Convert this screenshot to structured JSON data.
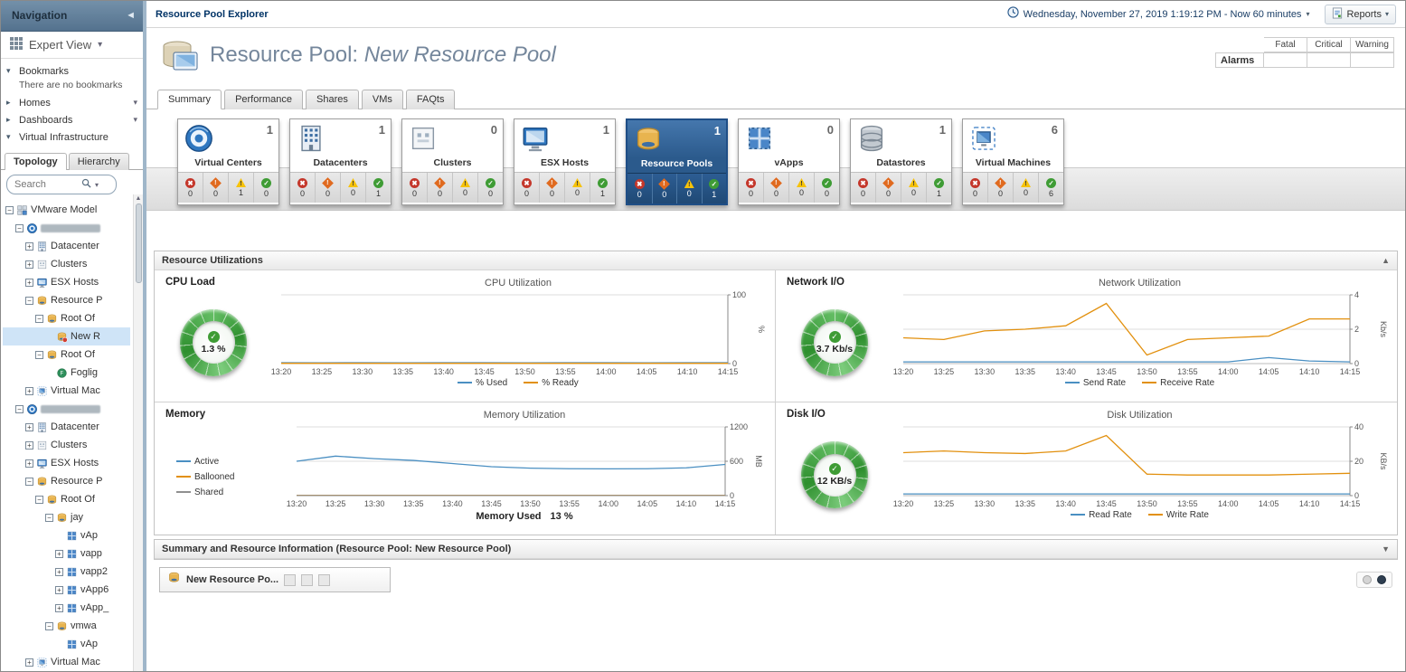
{
  "nav": {
    "title": "Navigation",
    "expert_view": "Expert View",
    "bookmarks_label": "Bookmarks",
    "bookmarks_empty": "There are no bookmarks",
    "homes_label": "Homes",
    "dashboards_label": "Dashboards",
    "virtual_infrastructure_label": "Virtual Infrastructure",
    "tabs": [
      {
        "label": "Topology",
        "active": true
      },
      {
        "label": "Hierarchy",
        "active": false
      }
    ],
    "search_placeholder": "Search",
    "tree": [
      {
        "label": "VMware Model",
        "depth": 0,
        "expander": "minus",
        "icon": "model"
      },
      {
        "label": "",
        "redacted": true,
        "depth": 1,
        "expander": "minus",
        "icon": "vcenter"
      },
      {
        "label": "Datacenter",
        "depth": 2,
        "expander": "plus",
        "icon": "datacenter"
      },
      {
        "label": "Clusters",
        "depth": 2,
        "expander": "plus",
        "icon": "cluster"
      },
      {
        "label": "ESX Hosts",
        "depth": 2,
        "expander": "plus",
        "icon": "esx-host"
      },
      {
        "label": "Resource P",
        "depth": 2,
        "expander": "minus",
        "icon": "resource-pool"
      },
      {
        "label": "Root Of",
        "depth": 3,
        "expander": "minus",
        "icon": "resource-pool"
      },
      {
        "label": "New R",
        "depth": 4,
        "expander": "none",
        "icon": "resource-pool-alarm",
        "selected": true
      },
      {
        "label": "Root Of",
        "depth": 3,
        "expander": "minus",
        "icon": "resource-pool"
      },
      {
        "label": "Foglig",
        "depth": 4,
        "expander": "none",
        "icon": "foglight"
      },
      {
        "label": "Virtual Mac",
        "depth": 2,
        "expander": "plus",
        "icon": "virtual-machine"
      },
      {
        "label": "",
        "redacted": true,
        "depth": 1,
        "expander": "minus",
        "icon": "vcenter"
      },
      {
        "label": "Datacenter",
        "depth": 2,
        "expander": "plus",
        "icon": "datacenter"
      },
      {
        "label": "Clusters",
        "depth": 2,
        "expander": "plus",
        "icon": "cluster"
      },
      {
        "label": "ESX Hosts",
        "depth": 2,
        "expander": "plus",
        "icon": "esx-host"
      },
      {
        "label": "Resource P",
        "depth": 2,
        "expander": "minus",
        "icon": "resource-pool"
      },
      {
        "label": "Root Of",
        "depth": 3,
        "expander": "minus",
        "icon": "resource-pool"
      },
      {
        "label": "jay",
        "depth": 4,
        "expander": "minus",
        "icon": "resource-pool"
      },
      {
        "label": "vAp",
        "depth": 5,
        "expander": "none",
        "icon": "vapp"
      },
      {
        "label": "vapp",
        "depth": 5,
        "expander": "plus",
        "icon": "vapp"
      },
      {
        "label": "vapp2",
        "depth": 5,
        "expander": "plus",
        "icon": "vapp"
      },
      {
        "label": "vApp6",
        "depth": 5,
        "expander": "plus",
        "icon": "vapp"
      },
      {
        "label": "vApp_",
        "depth": 5,
        "expander": "plus",
        "icon": "vapp"
      },
      {
        "label": "vmwa",
        "depth": 4,
        "expander": "minus",
        "icon": "resource-pool"
      },
      {
        "label": "vAp",
        "depth": 5,
        "expander": "none",
        "icon": "vapp"
      },
      {
        "label": "Virtual Mac",
        "depth": 2,
        "expander": "plus",
        "icon": "virtual-machine"
      }
    ]
  },
  "topbar": {
    "breadcrumb": "Resource Pool Explorer",
    "time_range": "Wednesday, November 27, 2019 1:19:12 PM - Now 60 minutes",
    "reports_label": "Reports"
  },
  "header": {
    "title_prefix": "Resource Pool:",
    "title_name": "New Resource Pool",
    "alarms_label": "Alarms",
    "alarm_columns": [
      "Fatal",
      "Critical",
      "Warning"
    ]
  },
  "tabs": [
    {
      "label": "Summary",
      "active": true
    },
    {
      "label": "Performance",
      "active": false
    },
    {
      "label": "Shares",
      "active": false
    },
    {
      "label": "VMs",
      "active": false
    },
    {
      "label": "FAQts",
      "active": false
    }
  ],
  "tiles": [
    {
      "label": "Virtual Centers",
      "count": "1",
      "icon": "virtual-center",
      "alarms": {
        "fatal": 0,
        "critical": 0,
        "warning": 1,
        "normal": 0
      }
    },
    {
      "label": "Datacenters",
      "count": "1",
      "icon": "datacenter",
      "alarms": {
        "fatal": 0,
        "critical": 0,
        "warning": 0,
        "normal": 1
      }
    },
    {
      "label": "Clusters",
      "count": "0",
      "icon": "cluster",
      "alarms": {
        "fatal": 0,
        "critical": 0,
        "warning": 0,
        "normal": 0
      }
    },
    {
      "label": "ESX Hosts",
      "count": "1",
      "icon": "esx-host",
      "alarms": {
        "fatal": 0,
        "critical": 0,
        "warning": 0,
        "normal": 1
      }
    },
    {
      "label": "Resource Pools",
      "count": "1",
      "icon": "resource-pool",
      "selected": true,
      "alarms": {
        "fatal": 0,
        "critical": 0,
        "warning": 0,
        "normal": 1
      }
    },
    {
      "label": "vApps",
      "count": "0",
      "icon": "vapp",
      "alarms": {
        "fatal": 0,
        "critical": 0,
        "warning": 0,
        "normal": 0
      }
    },
    {
      "label": "Datastores",
      "count": "1",
      "icon": "datastore",
      "alarms": {
        "fatal": 0,
        "critical": 0,
        "warning": 0,
        "normal": 1
      }
    },
    {
      "label": "Virtual Machines",
      "count": "6",
      "icon": "virtual-machine",
      "alarms": {
        "fatal": 0,
        "critical": 0,
        "warning": 0,
        "normal": 6
      }
    }
  ],
  "sections": {
    "resource_utilizations": "Resource Utilizations",
    "summary_info": "Summary and Resource Information (Resource Pool: New Resource Pool)"
  },
  "panels": [
    {
      "label": "CPU Load",
      "gauge_value": "1.3 %",
      "chart": "cpu"
    },
    {
      "label": "Network I/O",
      "gauge_value": "3.7 Kb/s",
      "chart": "network"
    },
    {
      "label": "Memory",
      "chart": "memory",
      "footer_label": "Memory Used",
      "footer_value": "13 %"
    },
    {
      "label": "Disk I/O",
      "gauge_value": "12 KB/s",
      "chart": "disk"
    }
  ],
  "bottom": {
    "tab_label": "New Resource Po..."
  },
  "colors": {
    "accent_blue": "#2d5f97",
    "selected_row": "#cfe4f7",
    "fatal": "#c4372b",
    "critical": "#e06a1f",
    "warning": "#f6c20a",
    "normal": "#3f9c35",
    "line_blue": "#4a8fc2",
    "line_orange": "#e2900e",
    "line_gray": "#909090"
  },
  "chart_data": [
    {
      "id": "cpu",
      "type": "line",
      "title": "CPU Utilization",
      "ylabel": "%",
      "ylim": [
        0,
        100
      ],
      "yticks": [
        0,
        100
      ],
      "legend_position": "bottom",
      "x": [
        "13:20",
        "13:25",
        "13:30",
        "13:35",
        "13:40",
        "13:45",
        "13:50",
        "13:55",
        "14:00",
        "14:05",
        "14:10",
        "14:15"
      ],
      "series": [
        {
          "name": "% Used",
          "color": "#4a8fc2",
          "values": [
            1.3,
            1.2,
            1.3,
            1.2,
            1.3,
            1.3,
            1.2,
            1.3,
            1.3,
            1.2,
            1.3,
            1.3
          ]
        },
        {
          "name": "% Ready",
          "color": "#e2900e",
          "values": [
            0.4,
            0.4,
            0.4,
            0.4,
            0.4,
            0.4,
            0.4,
            0.4,
            0.4,
            0.4,
            0.4,
            0.4
          ]
        }
      ]
    },
    {
      "id": "network",
      "type": "line",
      "title": "Network Utilization",
      "ylabel": "Kb/s",
      "ylim": [
        0,
        4
      ],
      "yticks": [
        0,
        2,
        4
      ],
      "legend_position": "bottom",
      "x": [
        "13:20",
        "13:25",
        "13:30",
        "13:35",
        "13:40",
        "13:45",
        "13:50",
        "13:55",
        "14:00",
        "14:05",
        "14:10",
        "14:15"
      ],
      "series": [
        {
          "name": "Send Rate",
          "color": "#4a8fc2",
          "values": [
            0.1,
            0.1,
            0.1,
            0.1,
            0.1,
            0.1,
            0.1,
            0.1,
            0.1,
            0.35,
            0.15,
            0.1
          ]
        },
        {
          "name": "Receive Rate",
          "color": "#e2900e",
          "values": [
            1.5,
            1.4,
            1.9,
            2.0,
            2.2,
            3.5,
            0.5,
            1.4,
            1.5,
            1.6,
            2.6,
            2.6
          ]
        }
      ]
    },
    {
      "id": "memory",
      "type": "line",
      "title": "Memory Utilization",
      "ylabel": "MB",
      "ylim": [
        0,
        1200
      ],
      "yticks": [
        0,
        600,
        1200
      ],
      "legend_position": "left",
      "x": [
        "13:20",
        "13:25",
        "13:30",
        "13:35",
        "13:40",
        "13:45",
        "13:50",
        "13:55",
        "14:00",
        "14:05",
        "14:10",
        "14:15"
      ],
      "series": [
        {
          "name": "Active",
          "color": "#4a8fc2",
          "values": [
            600,
            690,
            645,
            615,
            560,
            505,
            480,
            470,
            468,
            470,
            485,
            545
          ]
        },
        {
          "name": "Ballooned",
          "color": "#e2900e",
          "values": [
            5,
            5,
            5,
            5,
            5,
            5,
            5,
            5,
            5,
            5,
            5,
            5
          ]
        },
        {
          "name": "Shared",
          "color": "#909090",
          "values": [
            2,
            2,
            2,
            2,
            2,
            2,
            2,
            2,
            2,
            2,
            2,
            2
          ]
        }
      ]
    },
    {
      "id": "disk",
      "type": "line",
      "title": "Disk Utilization",
      "ylabel": "KB/s",
      "ylim": [
        0,
        40
      ],
      "yticks": [
        0,
        20,
        40
      ],
      "legend_position": "bottom",
      "x": [
        "13:20",
        "13:25",
        "13:30",
        "13:35",
        "13:40",
        "13:45",
        "13:50",
        "13:55",
        "14:00",
        "14:05",
        "14:10",
        "14:15"
      ],
      "series": [
        {
          "name": "Read Rate",
          "color": "#4a8fc2",
          "values": [
            1,
            1,
            1,
            1,
            1,
            1,
            1,
            1,
            1,
            1,
            1,
            1
          ]
        },
        {
          "name": "Write Rate",
          "color": "#e2900e",
          "values": [
            25,
            26,
            25,
            24.5,
            26,
            35,
            12.5,
            12,
            12,
            12,
            12.5,
            13
          ]
        }
      ]
    }
  ]
}
